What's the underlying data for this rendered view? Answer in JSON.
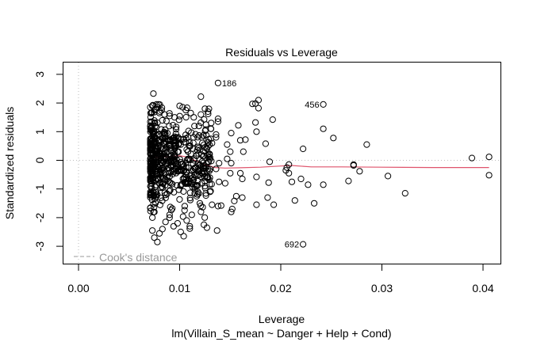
{
  "chart_data": {
    "type": "scatter",
    "title": "Residuals vs Leverage",
    "xlabel": "Leverage",
    "subtitle": "lm(Villain_S_mean ~ Danger + Help + Cond)",
    "ylabel": "Standardized residuals",
    "xlim": [
      -0.0016,
      0.0418
    ],
    "ylim": [
      -3.45,
      3.5
    ],
    "x_ticks": [
      0.0,
      0.01,
      0.02,
      0.03,
      0.04
    ],
    "x_tick_labels": [
      "0.00",
      "0.01",
      "0.02",
      "0.03",
      "0.04"
    ],
    "y_ticks": [
      -3,
      -2,
      -1,
      0,
      1,
      2,
      3
    ],
    "y_tick_labels": [
      "-3",
      "-2",
      "-1",
      "0",
      "1",
      "2",
      "3"
    ],
    "reference_lines": {
      "horizontal_y": 0,
      "vertical_x": 0,
      "style": "dotted",
      "color": "#bebebe"
    },
    "legend": {
      "label": "Cook's distance",
      "placement": "bottom-left",
      "line_style": "dashed",
      "color": "#999999"
    },
    "labeled_points": [
      {
        "id": "186",
        "x": 0.0138,
        "y": 2.7,
        "label_side": "right"
      },
      {
        "id": "456",
        "x": 0.0242,
        "y": 1.95,
        "label_side": "left"
      },
      {
        "id": "692",
        "x": 0.0222,
        "y": -2.93,
        "label_side": "left"
      }
    ],
    "sparse_points": [
      [
        0.0074,
        2.33
      ],
      [
        0.0121,
        2.22
      ],
      [
        0.0172,
        1.97
      ],
      [
        0.0175,
        1.98
      ],
      [
        0.0178,
        2.1
      ],
      [
        0.0178,
        1.82
      ],
      [
        0.0138,
        1.45
      ],
      [
        0.0138,
        1.35
      ],
      [
        0.0136,
        0.9
      ],
      [
        0.0136,
        0.8
      ],
      [
        0.0151,
        0.95
      ],
      [
        0.0158,
        1.22
      ],
      [
        0.0175,
        1.32
      ],
      [
        0.0192,
        1.42
      ],
      [
        0.016,
        0.7
      ],
      [
        0.0165,
        0.72
      ],
      [
        0.0176,
        1.0
      ],
      [
        0.0163,
        0.3
      ],
      [
        0.015,
        0.3
      ],
      [
        0.0147,
        0.55
      ],
      [
        0.0185,
        0.58
      ],
      [
        0.0242,
        1.1
      ],
      [
        0.0252,
        0.78
      ],
      [
        0.0222,
        0.4
      ],
      [
        0.0285,
        0.55
      ],
      [
        0.0389,
        0.08
      ],
      [
        0.0406,
        0.12
      ],
      [
        0.0406,
        -0.52
      ],
      [
        0.0189,
        -0.05
      ],
      [
        0.0151,
        -0.1
      ],
      [
        0.0147,
        0.05
      ],
      [
        0.016,
        -0.45
      ],
      [
        0.015,
        -0.45
      ],
      [
        0.0139,
        -0.1
      ],
      [
        0.0136,
        -0.3
      ],
      [
        0.0139,
        -0.75
      ],
      [
        0.0145,
        -0.8
      ],
      [
        0.0162,
        -0.65
      ],
      [
        0.0176,
        -0.58
      ],
      [
        0.0188,
        -0.78
      ],
      [
        0.0206,
        -0.25
      ],
      [
        0.0208,
        -0.15
      ],
      [
        0.0205,
        -0.35
      ],
      [
        0.0208,
        -0.45
      ],
      [
        0.0211,
        -0.75
      ],
      [
        0.022,
        -0.65
      ],
      [
        0.0227,
        -0.85
      ],
      [
        0.0242,
        -0.85
      ],
      [
        0.0267,
        -0.72
      ],
      [
        0.0272,
        -0.15
      ],
      [
        0.0272,
        -0.18
      ],
      [
        0.0278,
        -0.38
      ],
      [
        0.0306,
        -0.55
      ],
      [
        0.0323,
        -1.15
      ],
      [
        0.0233,
        -1.5
      ],
      [
        0.0214,
        -1.4
      ],
      [
        0.0193,
        -1.55
      ],
      [
        0.0187,
        -1.3
      ],
      [
        0.0176,
        -1.55
      ],
      [
        0.0162,
        -1.3
      ],
      [
        0.0156,
        -1.25
      ],
      [
        0.0154,
        -1.42
      ],
      [
        0.0152,
        -1.7
      ],
      [
        0.0151,
        -1.8
      ],
      [
        0.0138,
        -1.6
      ],
      [
        0.0141,
        -1.58
      ],
      [
        0.0132,
        -1.55
      ],
      [
        0.0124,
        -2.25
      ],
      [
        0.0127,
        -2.35
      ],
      [
        0.0137,
        -2.45
      ],
      [
        0.011,
        -2.3
      ],
      [
        0.011,
        -2.38
      ]
    ],
    "dense_cluster": {
      "x_range": [
        0.0071,
        0.0132
      ],
      "y_range": [
        -2.85,
        1.95
      ],
      "approx_count": 600,
      "note": "bulk of observations concentrated at low leverage"
    },
    "dense_points": [
      [
        0.0071,
        1.85
      ],
      [
        0.0073,
        1.9
      ],
      [
        0.0075,
        1.75
      ],
      [
        0.0078,
        1.85
      ],
      [
        0.008,
        1.65
      ],
      [
        0.0085,
        1.6
      ],
      [
        0.009,
        1.55
      ],
      [
        0.0095,
        1.5
      ],
      [
        0.01,
        1.9
      ],
      [
        0.0103,
        1.85
      ],
      [
        0.0106,
        1.75
      ],
      [
        0.0111,
        1.65
      ],
      [
        0.0114,
        1.5
      ],
      [
        0.0121,
        1.6
      ],
      [
        0.0125,
        1.8
      ],
      [
        0.0128,
        1.7
      ],
      [
        0.0119,
        1.2
      ],
      [
        0.0126,
        1.25
      ],
      [
        0.0131,
        1.1
      ],
      [
        0.0073,
        -2.45
      ],
      [
        0.0075,
        -2.7
      ],
      [
        0.0078,
        -2.85
      ],
      [
        0.008,
        -2.55
      ],
      [
        0.0083,
        -2.4
      ],
      [
        0.0086,
        -2.15
      ],
      [
        0.009,
        -2.0
      ],
      [
        0.0094,
        -2.3
      ],
      [
        0.0098,
        -2.2
      ],
      [
        0.0101,
        -2.5
      ],
      [
        0.0104,
        -2.65
      ],
      [
        0.0107,
        -2.1
      ],
      [
        0.0073,
        -2.0
      ],
      [
        0.0075,
        -1.8
      ],
      [
        0.009,
        -1.9
      ],
      [
        0.0105,
        -1.6
      ],
      [
        0.0112,
        -1.9
      ],
      [
        0.012,
        -1.5
      ],
      [
        0.0118,
        -1.1
      ],
      [
        0.0125,
        -0.9
      ],
      [
        0.013,
        -1.1
      ],
      [
        0.0128,
        -0.6
      ],
      [
        0.0124,
        -0.3
      ],
      [
        0.013,
        0.1
      ],
      [
        0.0127,
        0.4
      ],
      [
        0.0122,
        0.8
      ],
      [
        0.0132,
        0.6
      ]
    ],
    "smooth_line": {
      "color": "#df536b",
      "points": [
        [
          0.0072,
          0.08
        ],
        [
          0.008,
          0.1
        ],
        [
          0.009,
          0.13
        ],
        [
          0.01,
          0.16
        ],
        [
          0.0107,
          0.12
        ],
        [
          0.0115,
          0.0
        ],
        [
          0.0125,
          -0.15
        ],
        [
          0.0135,
          -0.25
        ],
        [
          0.0145,
          -0.27
        ],
        [
          0.016,
          -0.26
        ],
        [
          0.018,
          -0.24
        ],
        [
          0.02,
          -0.2
        ],
        [
          0.021,
          -0.18
        ],
        [
          0.023,
          -0.23
        ],
        [
          0.026,
          -0.23
        ],
        [
          0.03,
          -0.24
        ],
        [
          0.035,
          -0.25
        ],
        [
          0.0406,
          -0.25
        ]
      ]
    }
  }
}
